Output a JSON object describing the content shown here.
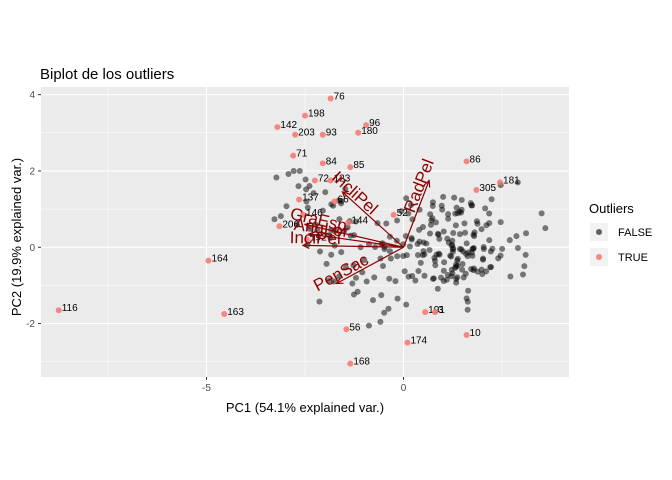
{
  "chart_data": {
    "type": "scatter",
    "title": "Biplot de los outliers",
    "xlabel": "PC1 (54.1% explained var.)",
    "ylabel": "PC2 (19.9% explained var.)",
    "xlim": [
      -9.2,
      4.2
    ],
    "ylim": [
      -3.4,
      4.2
    ],
    "x_ticks": [
      -5,
      0
    ],
    "x_tick_labels": [
      "-5",
      "0"
    ],
    "y_ticks": [
      -2,
      0,
      2,
      4
    ],
    "y_tick_labels": [
      "-2",
      "0",
      "2",
      "4"
    ],
    "grid": true,
    "legend": {
      "title": "Outliers",
      "position": "right",
      "entries": [
        {
          "label": "FALSE",
          "color": "#000000"
        },
        {
          "label": "TRUE",
          "color": "#f8766d"
        }
      ]
    },
    "colors": {
      "false": "#000000",
      "true": "#f8766d",
      "arrow": "#8b0000",
      "panel": "#ebebeb",
      "grid": "#ffffff"
    },
    "outliers": [
      {
        "label": "76",
        "x": -1.85,
        "y": 3.9
      },
      {
        "label": "198",
        "x": -2.5,
        "y": 3.45
      },
      {
        "label": "96",
        "x": -0.95,
        "y": 3.2
      },
      {
        "label": "142",
        "x": -3.2,
        "y": 3.15
      },
      {
        "label": "180",
        "x": -1.15,
        "y": 3.0
      },
      {
        "label": "203",
        "x": -2.75,
        "y": 2.95
      },
      {
        "label": "93",
        "x": -2.05,
        "y": 2.95
      },
      {
        "label": "71",
        "x": -2.8,
        "y": 2.4
      },
      {
        "label": "86",
        "x": 1.6,
        "y": 2.25
      },
      {
        "label": "84",
        "x": -2.05,
        "y": 2.2
      },
      {
        "label": "85",
        "x": -1.35,
        "y": 2.1
      },
      {
        "label": "72",
        "x": -2.25,
        "y": 1.75
      },
      {
        "label": "123",
        "x": -1.85,
        "y": 1.75
      },
      {
        "label": "181",
        "x": 2.45,
        "y": 1.7
      },
      {
        "label": "305",
        "x": 1.85,
        "y": 1.5
      },
      {
        "label": "137",
        "x": -2.65,
        "y": 1.25
      },
      {
        "label": "66",
        "x": -1.75,
        "y": 1.2
      },
      {
        "label": "146",
        "x": -2.55,
        "y": 0.85
      },
      {
        "label": "52",
        "x": -0.25,
        "y": 0.85
      },
      {
        "label": "144",
        "x": -1.4,
        "y": 0.65
      },
      {
        "label": "206",
        "x": -3.15,
        "y": 0.55
      },
      {
        "label": "192",
        "x": -2.45,
        "y": 0.2
      },
      {
        "label": "164",
        "x": -4.95,
        "y": -0.35
      },
      {
        "label": "116",
        "x": -8.75,
        "y": -1.65
      },
      {
        "label": "163",
        "x": -4.55,
        "y": -1.75
      },
      {
        "label": "191",
        "x": 0.55,
        "y": -1.7
      },
      {
        "label": "3",
        "x": 0.8,
        "y": -1.7
      },
      {
        "label": "56",
        "x": -1.45,
        "y": -2.15
      },
      {
        "label": "10",
        "x": 1.6,
        "y": -2.3
      },
      {
        "label": "174",
        "x": 0.1,
        "y": -2.5
      },
      {
        "label": "168",
        "x": -1.35,
        "y": -3.05
      }
    ],
    "loadings": [
      {
        "label": "RadPel",
        "x": 0.65,
        "y": 1.75
      },
      {
        "label": "IncliPel",
        "x": -1.55,
        "y": 1.45
      },
      {
        "label": "GraEsp",
        "x": -2.5,
        "y": 0.6
      },
      {
        "label": "AngLor",
        "x": -2.4,
        "y": 0.35
      },
      {
        "label": "InciPel",
        "x": -2.55,
        "y": 0.05
      },
      {
        "label": "PenSac",
        "x": -1.7,
        "y": -0.95
      }
    ]
  }
}
